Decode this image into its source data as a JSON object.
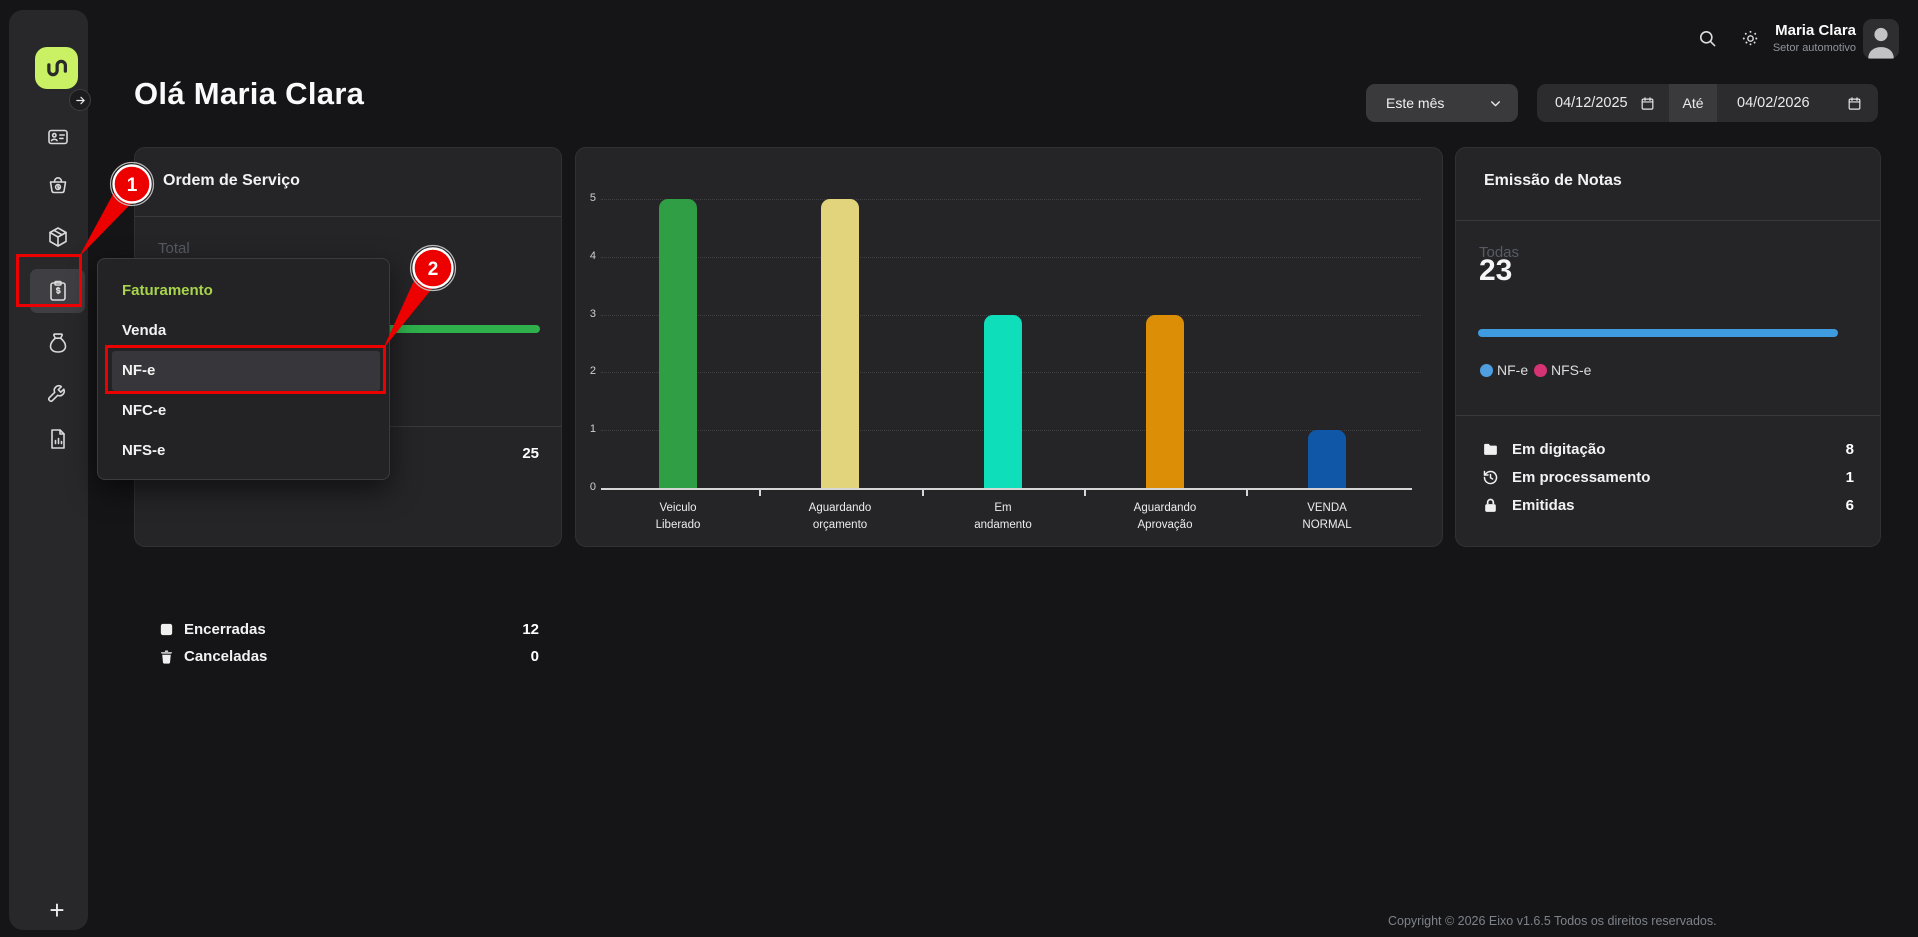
{
  "topbar": {
    "user_name": "Maria Clara",
    "user_role": "Setor automotivo"
  },
  "header": {
    "greeting": "Olá Maria Clara",
    "period": "Este mês",
    "date_from": "04/12/2025",
    "between_label": "Até",
    "date_to": "04/02/2026"
  },
  "service_orders": {
    "title": "Ordem de Serviço",
    "total_label": "Total",
    "bar_color": "#2fb14c",
    "rows": [
      {
        "label": "",
        "value": "25"
      },
      {
        "label": "Encerradas",
        "value": "12"
      },
      {
        "label": "Canceladas",
        "value": "0"
      }
    ]
  },
  "billing_menu": {
    "header": "Faturamento",
    "items": [
      {
        "label": "Venda"
      },
      {
        "label": "NF-e"
      },
      {
        "label": "NFC-e"
      },
      {
        "label": "NFS-e"
      }
    ]
  },
  "chart_data": {
    "type": "bar",
    "categories": [
      "Veiculo Liberado",
      "Aguardando orçamento",
      "Em andamento",
      "Aguardando Aprovação",
      "VENDA NORMAL"
    ],
    "values": [
      5,
      5,
      3,
      3,
      1
    ],
    "colors": [
      "#2f9e44",
      "#e2d37d",
      "#0edfba",
      "#dc8e06",
      "#1058a7"
    ],
    "title": "",
    "xlabel": "",
    "ylabel": "",
    "ylim": [
      0,
      5
    ],
    "yticks": [
      0,
      1,
      2,
      3,
      4,
      5
    ],
    "grid": true,
    "legend_position": "none"
  },
  "notes": {
    "title": "Emissão de Notas",
    "all_label": "Todas",
    "all_value": "23",
    "bar_color": "#3f9be0",
    "legend": [
      {
        "label": "NF-e",
        "color": "#4f9fe0"
      },
      {
        "label": "NFS-e",
        "color": "#d63374"
      }
    ],
    "rows": [
      {
        "label": "Em digitação",
        "value": "8"
      },
      {
        "label": "Em processamento",
        "value": "1"
      },
      {
        "label": "Emitidas",
        "value": "6"
      }
    ]
  },
  "annotations": {
    "step1": "1",
    "step2": "2"
  },
  "footer": {
    "copyright": "Copyright © 2026 Eixo v1.6.5 Todos os direitos reservados."
  }
}
